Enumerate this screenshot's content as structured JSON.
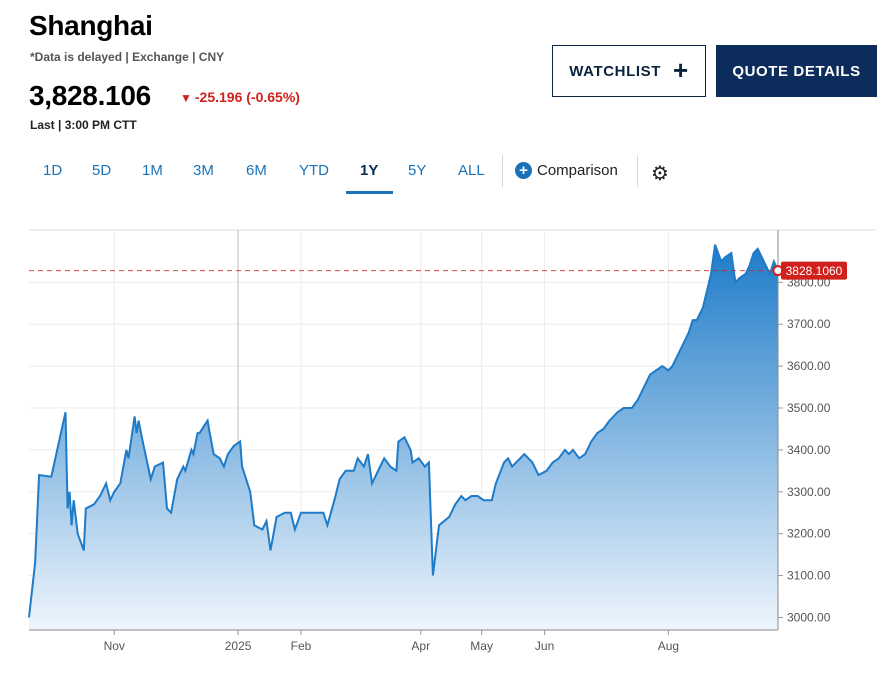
{
  "header": {
    "title": "Shanghai",
    "meta": "*Data is delayed | Exchange | CNY",
    "price": "3,828.106",
    "change_arrow": "▼",
    "change": "-25.196 (-0.65%)",
    "last": "Last | 3:00 PM CTT"
  },
  "buttons": {
    "watchlist": "WATCHLIST",
    "watchlist_icon": "plus-icon",
    "quote_details": "QUOTE DETAILS"
  },
  "tabs": [
    "1D",
    "5D",
    "1M",
    "3M",
    "6M",
    "YTD",
    "1Y",
    "5Y",
    "ALL"
  ],
  "active_tab": "1Y",
  "comparison_label": "Comparison",
  "settings_icon": "gear-icon",
  "colors": {
    "line": "#1e7bc8",
    "area_top": "#1e7bc8",
    "area_bottom": "#eef5fc",
    "last_price": "#d0211c",
    "navy": "#0c2d5b"
  },
  "chart_data": {
    "type": "area",
    "ylim": [
      2970,
      3925
    ],
    "yticks": [
      "3000.00",
      "3100.00",
      "3200.00",
      "3300.00",
      "3400.00",
      "3500.00",
      "3600.00",
      "3700.00",
      "3800.00"
    ],
    "ytick_values": [
      3000,
      3100,
      3200,
      3300,
      3400,
      3500,
      3600,
      3700,
      3800
    ],
    "xticks": [
      "Nov",
      "2025",
      "Feb",
      "Apr",
      "May",
      "Jun",
      "Aug"
    ],
    "xtick_dates": [
      "2024-11-01",
      "2025-01-01",
      "2025-02-01",
      "2025-04-01",
      "2025-05-01",
      "2025-06-01",
      "2025-08-01"
    ],
    "xlim": [
      "2024-09-20",
      "2025-09-24"
    ],
    "last_price_label": "3828.1060",
    "last_price_value": 3828.106,
    "grid": true,
    "series": [
      {
        "points": [
          [
            "2024-09-20",
            3000
          ],
          [
            "2024-09-23",
            3130
          ],
          [
            "2024-09-25",
            3340
          ],
          [
            "2024-10-01",
            3336
          ],
          [
            "2024-10-08",
            3490
          ],
          [
            "2024-10-09",
            3260
          ],
          [
            "2024-10-10",
            3300
          ],
          [
            "2024-10-11",
            3220
          ],
          [
            "2024-10-12",
            3280
          ],
          [
            "2024-10-14",
            3200
          ],
          [
            "2024-10-17",
            3160
          ],
          [
            "2024-10-18",
            3260
          ],
          [
            "2024-10-22",
            3270
          ],
          [
            "2024-10-25",
            3290
          ],
          [
            "2024-10-28",
            3320
          ],
          [
            "2024-10-30",
            3280
          ],
          [
            "2024-11-01",
            3300
          ],
          [
            "2024-11-04",
            3320
          ],
          [
            "2024-11-07",
            3400
          ],
          [
            "2024-11-08",
            3380
          ],
          [
            "2024-11-11",
            3480
          ],
          [
            "2024-11-12",
            3440
          ],
          [
            "2024-11-13",
            3470
          ],
          [
            "2024-11-15",
            3420
          ],
          [
            "2024-11-19",
            3330
          ],
          [
            "2024-11-21",
            3360
          ],
          [
            "2024-11-25",
            3370
          ],
          [
            "2024-11-27",
            3260
          ],
          [
            "2024-11-29",
            3250
          ],
          [
            "2024-12-02",
            3330
          ],
          [
            "2024-12-05",
            3360
          ],
          [
            "2024-12-06",
            3350
          ],
          [
            "2024-12-09",
            3400
          ],
          [
            "2024-12-10",
            3390
          ],
          [
            "2024-12-12",
            3440
          ],
          [
            "2024-12-13",
            3440
          ],
          [
            "2024-12-17",
            3470
          ],
          [
            "2024-12-18",
            3440
          ],
          [
            "2024-12-20",
            3390
          ],
          [
            "2024-12-23",
            3380
          ],
          [
            "2024-12-25",
            3360
          ],
          [
            "2024-12-27",
            3390
          ],
          [
            "2024-12-30",
            3410
          ],
          [
            "2025-01-02",
            3420
          ],
          [
            "2025-01-03",
            3360
          ],
          [
            "2025-01-07",
            3300
          ],
          [
            "2025-01-09",
            3220
          ],
          [
            "2025-01-13",
            3210
          ],
          [
            "2025-01-15",
            3230
          ],
          [
            "2025-01-17",
            3160
          ],
          [
            "2025-01-20",
            3240
          ],
          [
            "2025-01-24",
            3250
          ],
          [
            "2025-01-27",
            3250
          ],
          [
            "2025-01-29",
            3210
          ],
          [
            "2025-02-01",
            3250
          ],
          [
            "2025-02-05",
            3250
          ],
          [
            "2025-02-12",
            3250
          ],
          [
            "2025-02-14",
            3220
          ],
          [
            "2025-02-18",
            3290
          ],
          [
            "2025-02-20",
            3330
          ],
          [
            "2025-02-23",
            3350
          ],
          [
            "2025-02-27",
            3350
          ],
          [
            "2025-03-01",
            3380
          ],
          [
            "2025-03-04",
            3360
          ],
          [
            "2025-03-06",
            3390
          ],
          [
            "2025-03-08",
            3320
          ],
          [
            "2025-03-10",
            3340
          ],
          [
            "2025-03-14",
            3380
          ],
          [
            "2025-03-17",
            3360
          ],
          [
            "2025-03-20",
            3350
          ],
          [
            "2025-03-21",
            3420
          ],
          [
            "2025-03-24",
            3430
          ],
          [
            "2025-03-27",
            3400
          ],
          [
            "2025-03-28",
            3370
          ],
          [
            "2025-03-31",
            3380
          ],
          [
            "2025-04-03",
            3360
          ],
          [
            "2025-04-05",
            3370
          ],
          [
            "2025-04-07",
            3100
          ],
          [
            "2025-04-10",
            3220
          ],
          [
            "2025-04-15",
            3240
          ],
          [
            "2025-04-18",
            3270
          ],
          [
            "2025-04-21",
            3290
          ],
          [
            "2025-04-23",
            3280
          ],
          [
            "2025-04-26",
            3290
          ],
          [
            "2025-04-29",
            3290
          ],
          [
            "2025-05-02",
            3280
          ],
          [
            "2025-05-06",
            3280
          ],
          [
            "2025-05-08",
            3320
          ],
          [
            "2025-05-12",
            3370
          ],
          [
            "2025-05-14",
            3380
          ],
          [
            "2025-05-16",
            3360
          ],
          [
            "2025-05-20",
            3380
          ],
          [
            "2025-05-22",
            3390
          ],
          [
            "2025-05-26",
            3370
          ],
          [
            "2025-05-29",
            3340
          ],
          [
            "2025-06-02",
            3350
          ],
          [
            "2025-06-05",
            3370
          ],
          [
            "2025-06-08",
            3380
          ],
          [
            "2025-06-11",
            3400
          ],
          [
            "2025-06-13",
            3390
          ],
          [
            "2025-06-15",
            3400
          ],
          [
            "2025-06-18",
            3380
          ],
          [
            "2025-06-21",
            3390
          ],
          [
            "2025-06-24",
            3420
          ],
          [
            "2025-06-27",
            3440
          ],
          [
            "2025-06-30",
            3450
          ],
          [
            "2025-07-03",
            3470
          ],
          [
            "2025-07-07",
            3490
          ],
          [
            "2025-07-10",
            3500
          ],
          [
            "2025-07-14",
            3500
          ],
          [
            "2025-07-17",
            3520
          ],
          [
            "2025-07-20",
            3550
          ],
          [
            "2025-07-23",
            3580
          ],
          [
            "2025-07-26",
            3590
          ],
          [
            "2025-07-29",
            3600
          ],
          [
            "2025-08-01",
            3590
          ],
          [
            "2025-08-03",
            3600
          ],
          [
            "2025-08-06",
            3630
          ],
          [
            "2025-08-08",
            3650
          ],
          [
            "2025-08-11",
            3680
          ],
          [
            "2025-08-13",
            3710
          ],
          [
            "2025-08-15",
            3710
          ],
          [
            "2025-08-18",
            3740
          ],
          [
            "2025-08-20",
            3780
          ],
          [
            "2025-08-22",
            3820
          ],
          [
            "2025-08-24",
            3890
          ],
          [
            "2025-08-27",
            3850
          ],
          [
            "2025-08-29",
            3860
          ],
          [
            "2025-09-01",
            3870
          ],
          [
            "2025-09-03",
            3800
          ],
          [
            "2025-09-05",
            3810
          ],
          [
            "2025-09-08",
            3820
          ],
          [
            "2025-09-10",
            3840
          ],
          [
            "2025-09-12",
            3870
          ],
          [
            "2025-09-14",
            3880
          ],
          [
            "2025-09-16",
            3860
          ],
          [
            "2025-09-18",
            3840
          ],
          [
            "2025-09-20",
            3820
          ],
          [
            "2025-09-22",
            3850
          ],
          [
            "2025-09-24",
            3828
          ]
        ]
      }
    ]
  }
}
